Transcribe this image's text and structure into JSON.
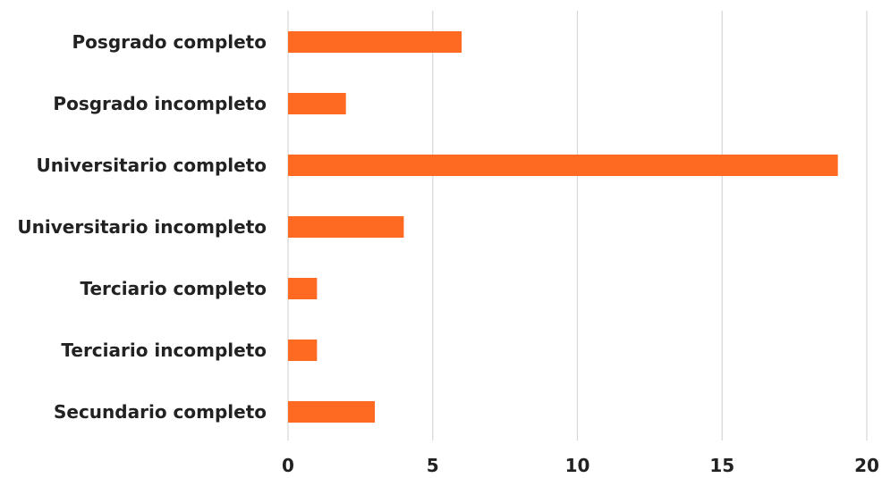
{
  "chart_data": {
    "type": "bar",
    "orientation": "horizontal",
    "categories": [
      "Posgrado completo",
      "Posgrado incompleto",
      "Universitario completo",
      "Universitario incompleto",
      "Terciario completo",
      "Terciario incompleto",
      "Secundario completo"
    ],
    "values": [
      6,
      2,
      19,
      4,
      1,
      1,
      3
    ],
    "xlim": [
      0,
      20
    ],
    "xticks": [
      0,
      5,
      10,
      15,
      20
    ],
    "grid": "vertical",
    "bar_color": "#FF6A22",
    "title": "",
    "xlabel": "",
    "ylabel": ""
  }
}
